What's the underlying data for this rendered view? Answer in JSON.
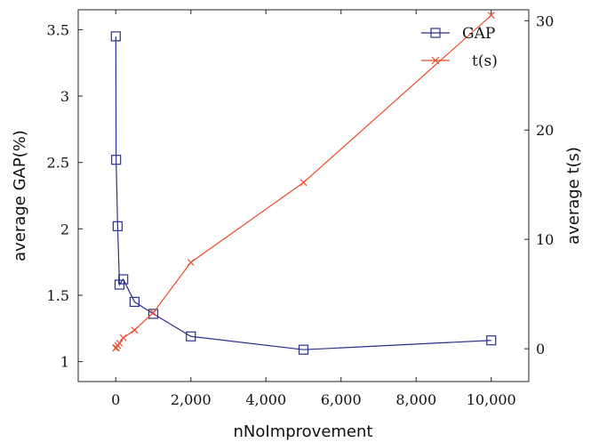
{
  "chart_data": {
    "type": "line",
    "xlabel": "nNoImprovement",
    "ylabel_left": "average GAP(%)",
    "ylabel_right": "average t(s)",
    "xlim": [
      -1000,
      11000
    ],
    "ylim_left": [
      0.85,
      3.65
    ],
    "ylim_right": [
      -3,
      31
    ],
    "x_ticks": [
      0,
      2000,
      4000,
      6000,
      8000,
      10000
    ],
    "x_tick_labels": [
      "0",
      "2,000",
      "4,000",
      "6,000",
      "8,000",
      "10,000"
    ],
    "y_left_ticks": [
      1,
      1.5,
      2,
      2.5,
      3,
      3.5
    ],
    "y_left_tick_labels": [
      "1",
      "1.5",
      "2",
      "2.5",
      "3",
      "3.5"
    ],
    "y_right_ticks": [
      0,
      10,
      20,
      30
    ],
    "y_right_tick_labels": [
      "0",
      "10",
      "20",
      "30"
    ],
    "legend_position": "top-right",
    "series": [
      {
        "name": "GAP",
        "axis": "left",
        "color": "#2b2f8c",
        "marker": "square",
        "x": [
          1,
          10,
          50,
          100,
          200,
          500,
          1000,
          2000,
          5000,
          10000
        ],
        "y": [
          3.45,
          2.52,
          2.02,
          1.58,
          1.62,
          1.45,
          1.36,
          1.19,
          1.09,
          1.16
        ]
      },
      {
        "name": "t(s)",
        "axis": "right",
        "color": "#ee4a2a",
        "marker": "cross",
        "x": [
          1,
          10,
          50,
          100,
          200,
          500,
          1000,
          2000,
          5000,
          10000
        ],
        "y": [
          0.05,
          0.1,
          0.3,
          0.5,
          1.0,
          1.7,
          3.3,
          7.9,
          15.2,
          30.5
        ]
      }
    ]
  }
}
